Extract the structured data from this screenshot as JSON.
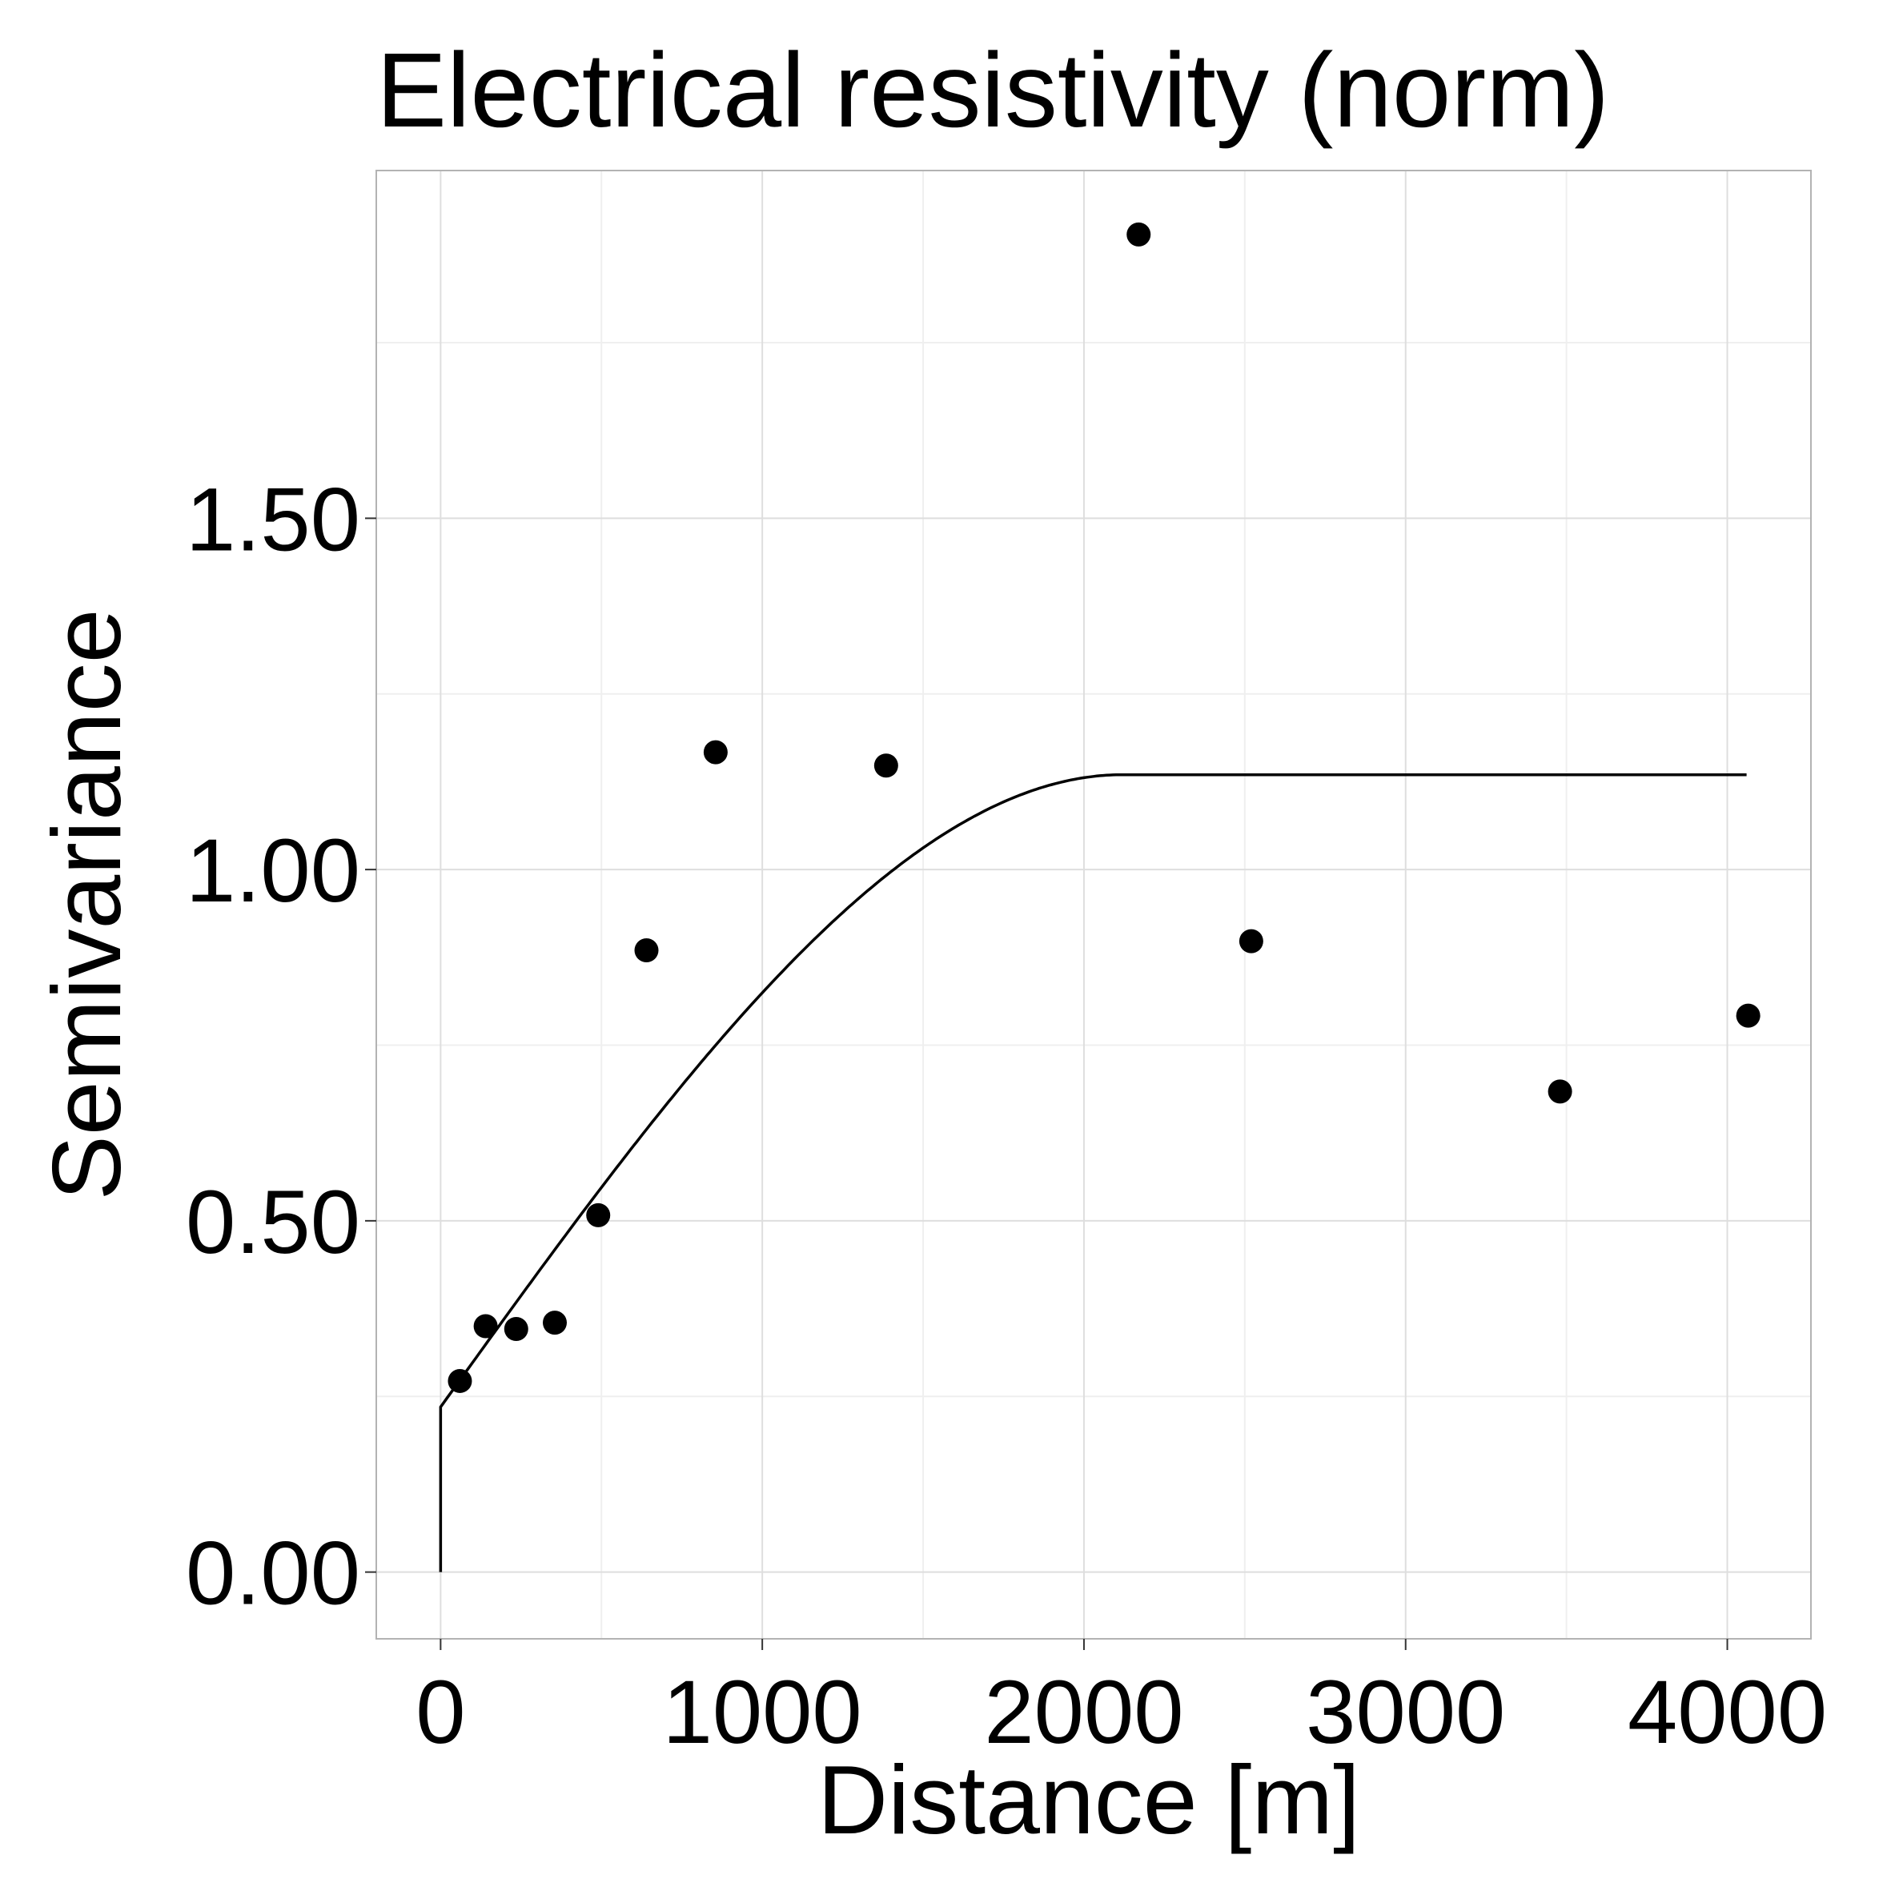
{
  "chart_data": {
    "type": "scatter",
    "title": "Electrical resistivity (norm)",
    "xlabel": "Distance [m]",
    "ylabel": "Semivariance",
    "xlim": [
      -200,
      4260
    ],
    "ylim": [
      -0.095,
      1.995
    ],
    "x_ticks": [
      0,
      1000,
      2000,
      3000,
      4000
    ],
    "x_tick_labels": [
      "0",
      "1000",
      "2000",
      "3000",
      "4000"
    ],
    "y_ticks": [
      0.0,
      0.5,
      1.0,
      1.5
    ],
    "y_tick_labels": [
      "0.00",
      "0.50",
      "1.00",
      "1.50"
    ],
    "grid": true,
    "legend": "none",
    "points": {
      "x": [
        60,
        140,
        235,
        355,
        490,
        640,
        855,
        1385,
        2170,
        2520,
        3480,
        4065
      ],
      "y": [
        0.272,
        0.35,
        0.346,
        0.355,
        0.508,
        0.885,
        1.167,
        1.148,
        1.904,
        0.898,
        0.684,
        0.792
      ],
      "color": "#000000"
    },
    "model_curve": {
      "type": "spherical",
      "nugget": 0.235,
      "sill": 1.135,
      "range": 2120,
      "x_max": 4065,
      "color": "#000000"
    },
    "colors": {
      "panel_border": "#b3b3b3",
      "grid_major": "#dedede",
      "grid_minor": "#efefef",
      "ticks": "#333333"
    }
  }
}
